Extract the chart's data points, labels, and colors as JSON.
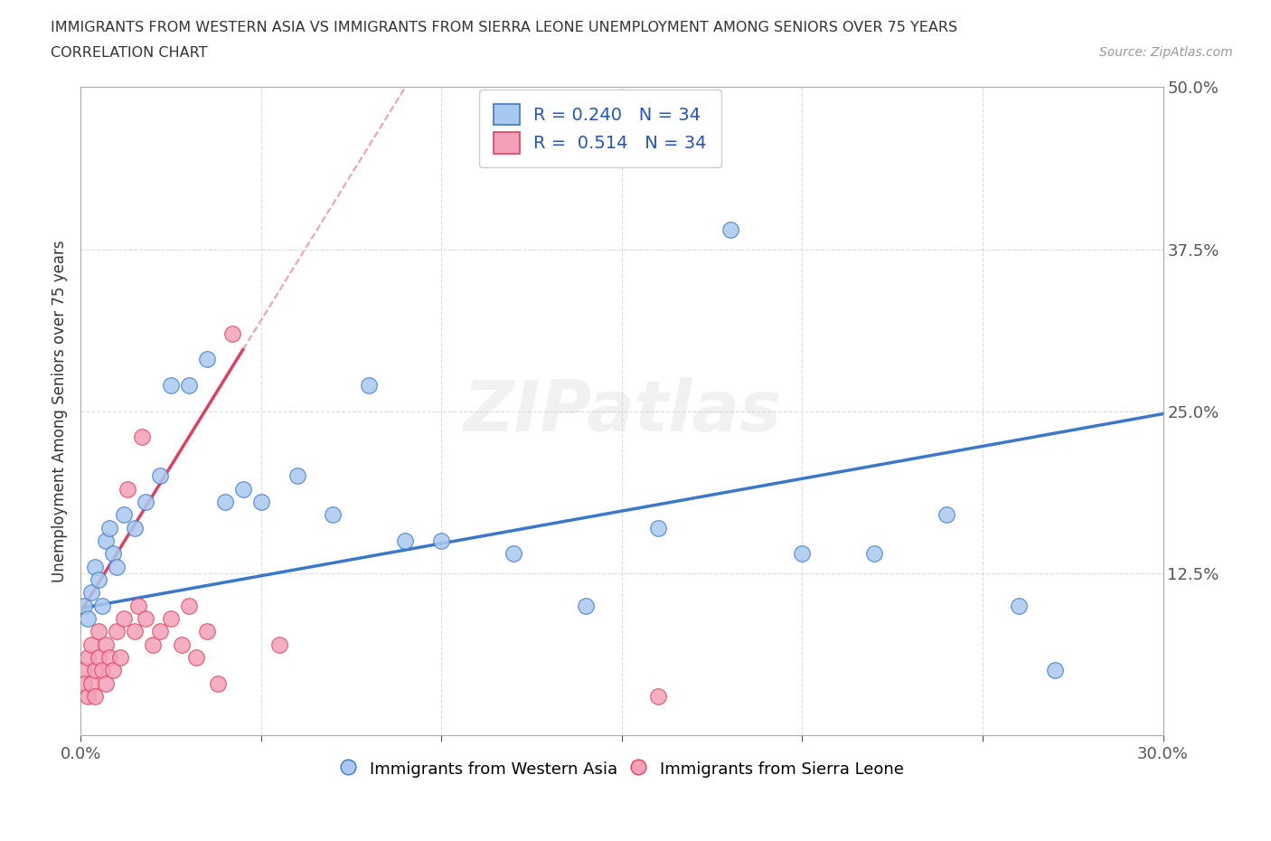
{
  "title_line1": "IMMIGRANTS FROM WESTERN ASIA VS IMMIGRANTS FROM SIERRA LEONE UNEMPLOYMENT AMONG SENIORS OVER 75 YEARS",
  "title_line2": "CORRELATION CHART",
  "source_text": "Source: ZipAtlas.com",
  "ylabel": "Unemployment Among Seniors over 75 years",
  "xlim": [
    0.0,
    0.3
  ],
  "ylim": [
    0.0,
    0.5
  ],
  "xticks": [
    0.0,
    0.05,
    0.1,
    0.15,
    0.2,
    0.25,
    0.3
  ],
  "yticks": [
    0.0,
    0.125,
    0.25,
    0.375,
    0.5
  ],
  "R_western_asia": 0.24,
  "R_sierra_leone": 0.514,
  "N_western_asia": 34,
  "N_sierra_leone": 34,
  "color_western_asia": "#A8C8F0",
  "color_sierra_leone": "#F4A0B8",
  "trendline_western_asia": "#3B78C9",
  "trendline_sierra_leone": "#E04060",
  "watermark": "ZIPatlas",
  "western_asia_x": [
    0.001,
    0.002,
    0.003,
    0.004,
    0.005,
    0.006,
    0.007,
    0.008,
    0.009,
    0.01,
    0.012,
    0.015,
    0.018,
    0.022,
    0.025,
    0.03,
    0.035,
    0.04,
    0.045,
    0.05,
    0.06,
    0.07,
    0.08,
    0.09,
    0.1,
    0.12,
    0.14,
    0.16,
    0.18,
    0.2,
    0.22,
    0.24,
    0.26,
    0.27
  ],
  "western_asia_y": [
    0.1,
    0.09,
    0.11,
    0.13,
    0.12,
    0.1,
    0.15,
    0.16,
    0.14,
    0.13,
    0.17,
    0.16,
    0.18,
    0.2,
    0.27,
    0.27,
    0.29,
    0.18,
    0.19,
    0.18,
    0.2,
    0.17,
    0.27,
    0.15,
    0.15,
    0.14,
    0.1,
    0.16,
    0.39,
    0.14,
    0.14,
    0.17,
    0.1,
    0.05
  ],
  "sierra_leone_x": [
    0.001,
    0.001,
    0.002,
    0.002,
    0.003,
    0.003,
    0.004,
    0.004,
    0.005,
    0.005,
    0.006,
    0.007,
    0.007,
    0.008,
    0.009,
    0.01,
    0.011,
    0.012,
    0.013,
    0.015,
    0.016,
    0.017,
    0.018,
    0.02,
    0.022,
    0.025,
    0.028,
    0.03,
    0.032,
    0.035,
    0.038,
    0.042,
    0.055,
    0.16
  ],
  "sierra_leone_y": [
    0.05,
    0.04,
    0.06,
    0.03,
    0.04,
    0.07,
    0.05,
    0.03,
    0.06,
    0.08,
    0.05,
    0.07,
    0.04,
    0.06,
    0.05,
    0.08,
    0.06,
    0.09,
    0.19,
    0.08,
    0.1,
    0.23,
    0.09,
    0.07,
    0.08,
    0.09,
    0.07,
    0.1,
    0.06,
    0.08,
    0.04,
    0.31,
    0.07,
    0.03
  ]
}
